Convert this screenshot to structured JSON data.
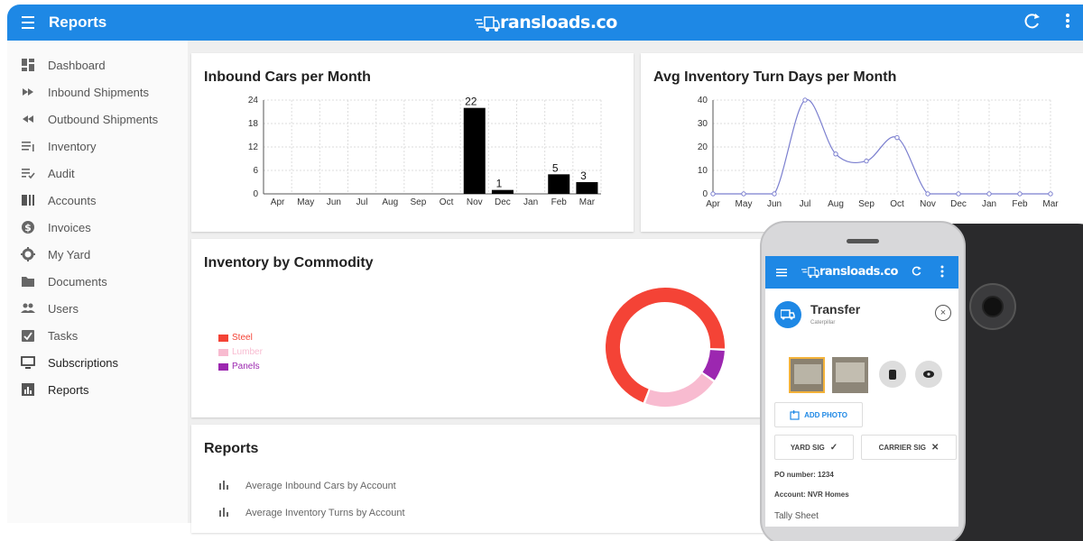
{
  "header": {
    "title": "Reports",
    "brand": "ransloads.co"
  },
  "sidebar": {
    "items": [
      {
        "label": "Dashboard",
        "icon": "dashboard-icon"
      },
      {
        "label": "Inbound Shipments",
        "icon": "fast-forward-icon"
      },
      {
        "label": "Outbound Shipments",
        "icon": "rewind-icon"
      },
      {
        "label": "Inventory",
        "icon": "list-icon"
      },
      {
        "label": "Audit",
        "icon": "checklist-icon"
      },
      {
        "label": "Accounts",
        "icon": "accounts-icon"
      },
      {
        "label": "Invoices",
        "icon": "dollar-icon"
      },
      {
        "label": "My Yard",
        "icon": "gear-icon"
      },
      {
        "label": "Documents",
        "icon": "folder-icon"
      },
      {
        "label": "Users",
        "icon": "users-icon"
      },
      {
        "label": "Tasks",
        "icon": "task-icon"
      },
      {
        "label": "Subscriptions",
        "icon": "monitor-icon"
      },
      {
        "label": "Reports",
        "icon": "bar-chart-icon"
      }
    ]
  },
  "cards": {
    "inbound_title": "Inbound Cars per Month",
    "turn_title": "Avg Inventory Turn Days per Month",
    "commodity_title": "Inventory by Commodity",
    "reports_title": "Reports"
  },
  "chart_data": [
    {
      "type": "bar",
      "title": "Inbound Cars per Month",
      "categories": [
        "Apr",
        "May",
        "Jun",
        "Jul",
        "Aug",
        "Sep",
        "Oct",
        "Nov",
        "Dec",
        "Jan",
        "Feb",
        "Mar"
      ],
      "values": [
        0,
        0,
        0,
        0,
        0,
        0,
        0,
        22,
        1,
        0,
        5,
        3
      ],
      "yticks": [
        0,
        6,
        12,
        18,
        24
      ],
      "ylim": [
        0,
        24
      ],
      "grid": true,
      "bar_color": "#000000"
    },
    {
      "type": "line",
      "title": "Avg Inventory Turn Days per Month",
      "categories": [
        "Apr",
        "May",
        "Jun",
        "Jul",
        "Aug",
        "Sep",
        "Oct",
        "Nov",
        "Dec",
        "Jan",
        "Feb",
        "Mar"
      ],
      "values": [
        0,
        0,
        0,
        40,
        17,
        14,
        24,
        0,
        0,
        0,
        0,
        0
      ],
      "yticks": [
        0,
        10,
        20,
        30,
        40
      ],
      "ylim": [
        0,
        40
      ],
      "grid": true,
      "line_color": "#7b7fcf"
    },
    {
      "type": "pie",
      "title": "Inventory by Commodity",
      "categories": [
        "Steel",
        "Lumber",
        "Panels"
      ],
      "values": [
        70,
        21,
        9
      ],
      "colors": [
        "#f44336",
        "#f8bbd0",
        "#9c27b0"
      ],
      "legend_position": "left"
    }
  ],
  "reports": {
    "items": [
      "Average Inbound Cars by Account",
      "Average Inventory Turns by Account"
    ]
  },
  "phone": {
    "brand": "ransloads.co",
    "transfer_title": "Transfer",
    "transfer_sub": "Caterpillar",
    "add_photo": "ADD PHOTO",
    "yard_sig": "YARD SIG",
    "carrier_sig": "CARRIER SIG",
    "po_number": "PO number: 1234",
    "account": "Account: NVR Homes",
    "tally": "Tally Sheet"
  }
}
